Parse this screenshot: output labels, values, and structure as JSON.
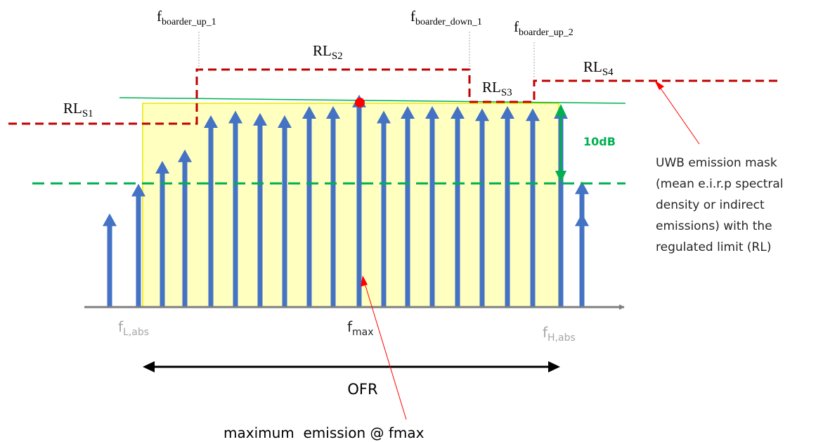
{
  "boundaries": {
    "up_1": {
      "main": "f",
      "sub": "boarder_up_1"
    },
    "down_1": {
      "main": "f",
      "sub": "boarder_down_1"
    },
    "up_2": {
      "main": "f",
      "sub": "boarder_up_2"
    }
  },
  "limits": {
    "s1": {
      "main": "RL",
      "sub": "S1"
    },
    "s2": {
      "main": "RL",
      "sub": "S2"
    },
    "s3": {
      "main": "RL",
      "sub": "S3"
    },
    "s4": {
      "main": "RL",
      "sub": "S4"
    }
  },
  "level_delta": "10dB",
  "mask_note": [
    "UWB emission mask",
    "(mean e.i.r.p spectral",
    "density or indirect",
    "emissions) with the",
    "regulated limit (RL)"
  ],
  "freq_labels": {
    "low": {
      "main": "f",
      "sub": "L,abs"
    },
    "max": {
      "main": "f",
      "sub": "max"
    },
    "high": {
      "main": "f",
      "sub": "H,abs"
    }
  },
  "range_label": "OFR",
  "max_note": "maximum  emission @ fmax",
  "spectral_line_levels": [
    0.41,
    0.54,
    0.64,
    0.69,
    0.84,
    0.86,
    0.85,
    0.84,
    0.88,
    0.88,
    0.93,
    0.86,
    0.88,
    0.88,
    0.88,
    0.87,
    0.88,
    0.87,
    0.88,
    0.55,
    0.41
  ],
  "colors": {
    "arrow": "#4472c4",
    "limit_line": "#c00000",
    "reference_line": "#00b050",
    "band_fill": "#ffffc0",
    "band_edge": "#e8e800",
    "axis": "#7f7f7f",
    "marker": "#ff0000",
    "low_high_label": "#a6a6a6"
  }
}
